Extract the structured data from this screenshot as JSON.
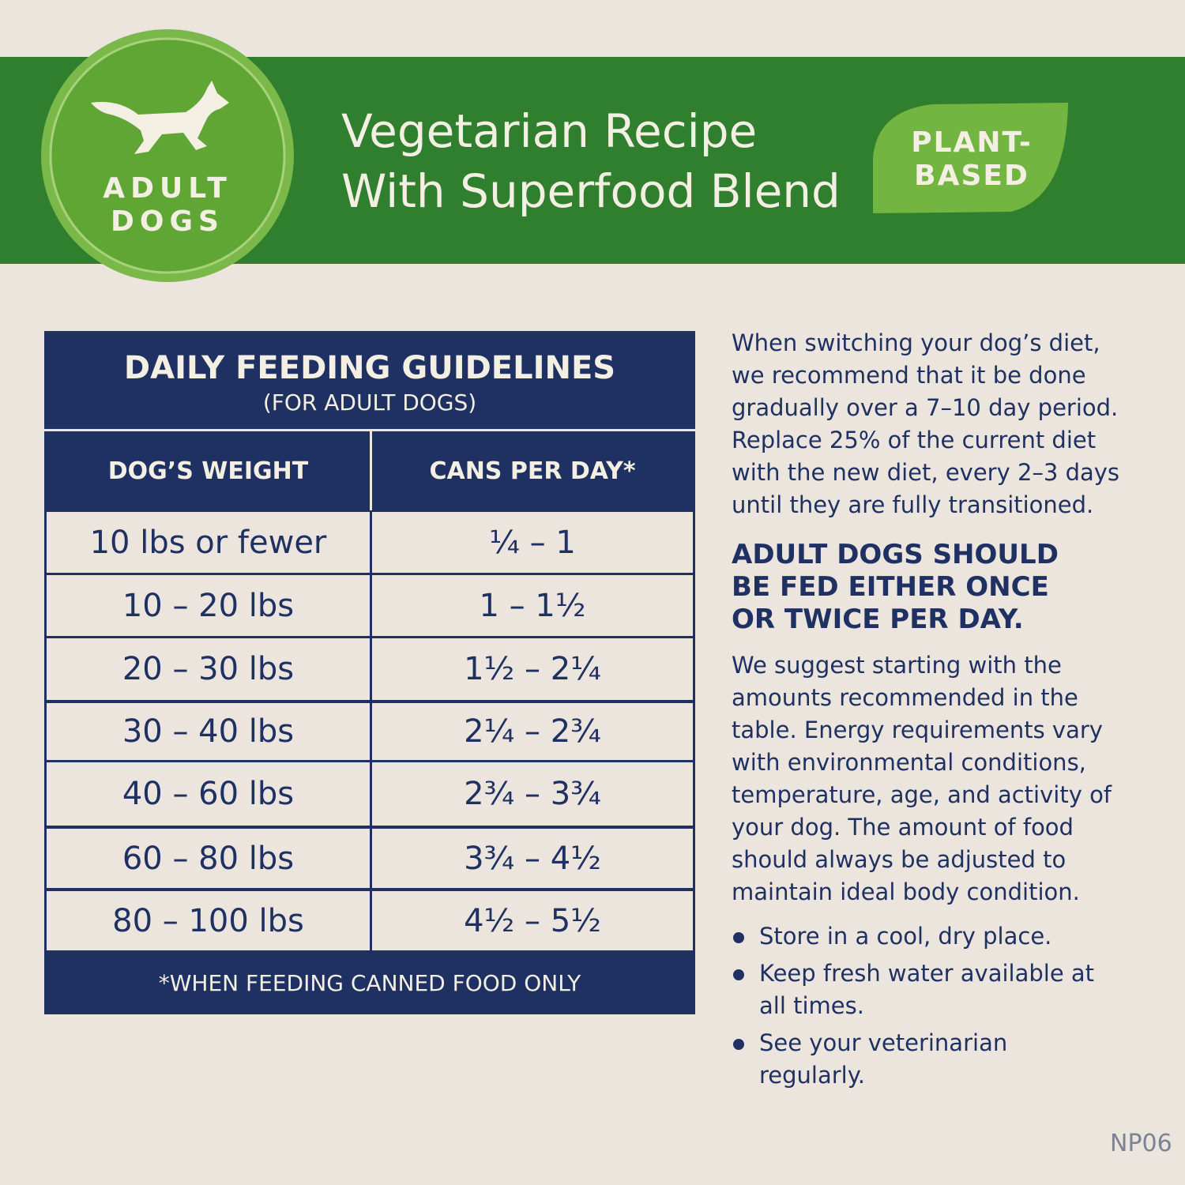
{
  "badge": {
    "line1": "ADULT",
    "line2": "DOGS"
  },
  "header": {
    "title_line1": "Vegetarian Recipe",
    "title_line2": "With Superfood Blend"
  },
  "leaf": {
    "line1": "PLANT-",
    "line2": "BASED"
  },
  "table": {
    "title": "DAILY FEEDING GUIDELINES",
    "subtitle": "(FOR ADULT DOGS)",
    "columns": [
      "DOG’S WEIGHT",
      "CANS PER DAY*"
    ],
    "rows": [
      [
        "10 lbs or fewer",
        "¼ – 1"
      ],
      [
        "10 – 20 lbs",
        "1 – 1½"
      ],
      [
        "20 – 30 lbs",
        "1½ – 2¼"
      ],
      [
        "30 – 40 lbs",
        "2¼ – 2¾"
      ],
      [
        "40 – 60 lbs",
        "2¾ – 3¾"
      ],
      [
        "60 – 80 lbs",
        "3¾ – 4½"
      ],
      [
        "80 – 100 lbs",
        "4½ – 5½"
      ]
    ],
    "footnote": "*WHEN FEEDING CANNED FOOD ONLY"
  },
  "intro": [
    "When switching your dog’s diet,",
    "we recommend that it be done",
    "gradually over a 7–10 day period.",
    "Replace 25% of the current diet",
    "with the new diet, every 2–3 days",
    "until they are fully transitioned."
  ],
  "emphasis": [
    "ADULT DOGS SHOULD",
    "BE FED EITHER ONCE",
    "OR TWICE PER DAY."
  ],
  "advice": [
    "We suggest starting with the",
    "amounts recommended in the",
    "table. Energy requirements vary",
    "with environmental conditions,",
    "temperature, age, and activity of",
    "your dog. The amount of food",
    "should always be adjusted to",
    "maintain ideal body condition."
  ],
  "bullets": [
    "Store in a cool, dry place.",
    "Keep fresh water available at all times.",
    "See your veterinarian regularly."
  ],
  "code": "NP06"
}
